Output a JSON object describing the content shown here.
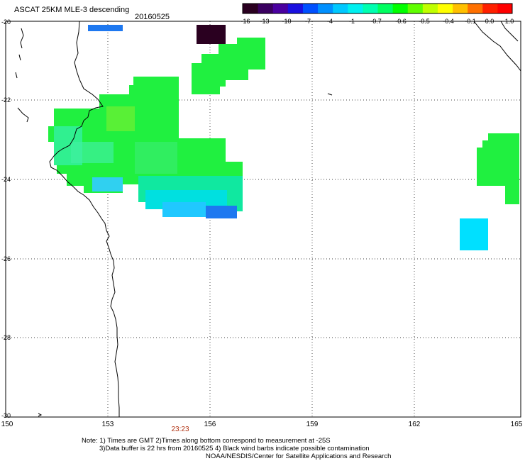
{
  "header": {
    "title": "ASCAT 25KM MLE-3 descending",
    "date": "20160525"
  },
  "colorbar": {
    "colors": [
      "#2a0020",
      "#3a0060",
      "#4a00a0",
      "#1a10e0",
      "#0050ff",
      "#0090ff",
      "#00c8ff",
      "#00f0f0",
      "#00ffb0",
      "#00ff60",
      "#00ff00",
      "#60ff00",
      "#c0ff00",
      "#ffff00",
      "#ffc000",
      "#ff7000",
      "#ff2000",
      "#ff0000"
    ],
    "ticks": [
      "-16",
      "-13",
      "-10",
      "-7",
      "-4",
      "-1",
      "-0.7",
      "-0.6",
      "-0.5",
      "-0.4",
      "-0.1",
      "0.0",
      "1.0"
    ]
  },
  "axes": {
    "lon_labels": [
      "150",
      "153",
      "156",
      "159",
      "162",
      "165"
    ],
    "lat_labels": [
      "-20",
      "-22",
      "-24",
      "-26",
      "-28",
      "-30"
    ]
  },
  "time_labels": [
    "23:23"
  ],
  "notes": [
    "Note: 1) Times are GMT 2)Times along bottom correspond to measurement at -25S",
    "3)Data buffer is 22 hrs from 20160525 4) Black wind barbs indicate possible contamination",
    "NOAA/NESDIS/Center for Satellite Applications and Research"
  ]
}
